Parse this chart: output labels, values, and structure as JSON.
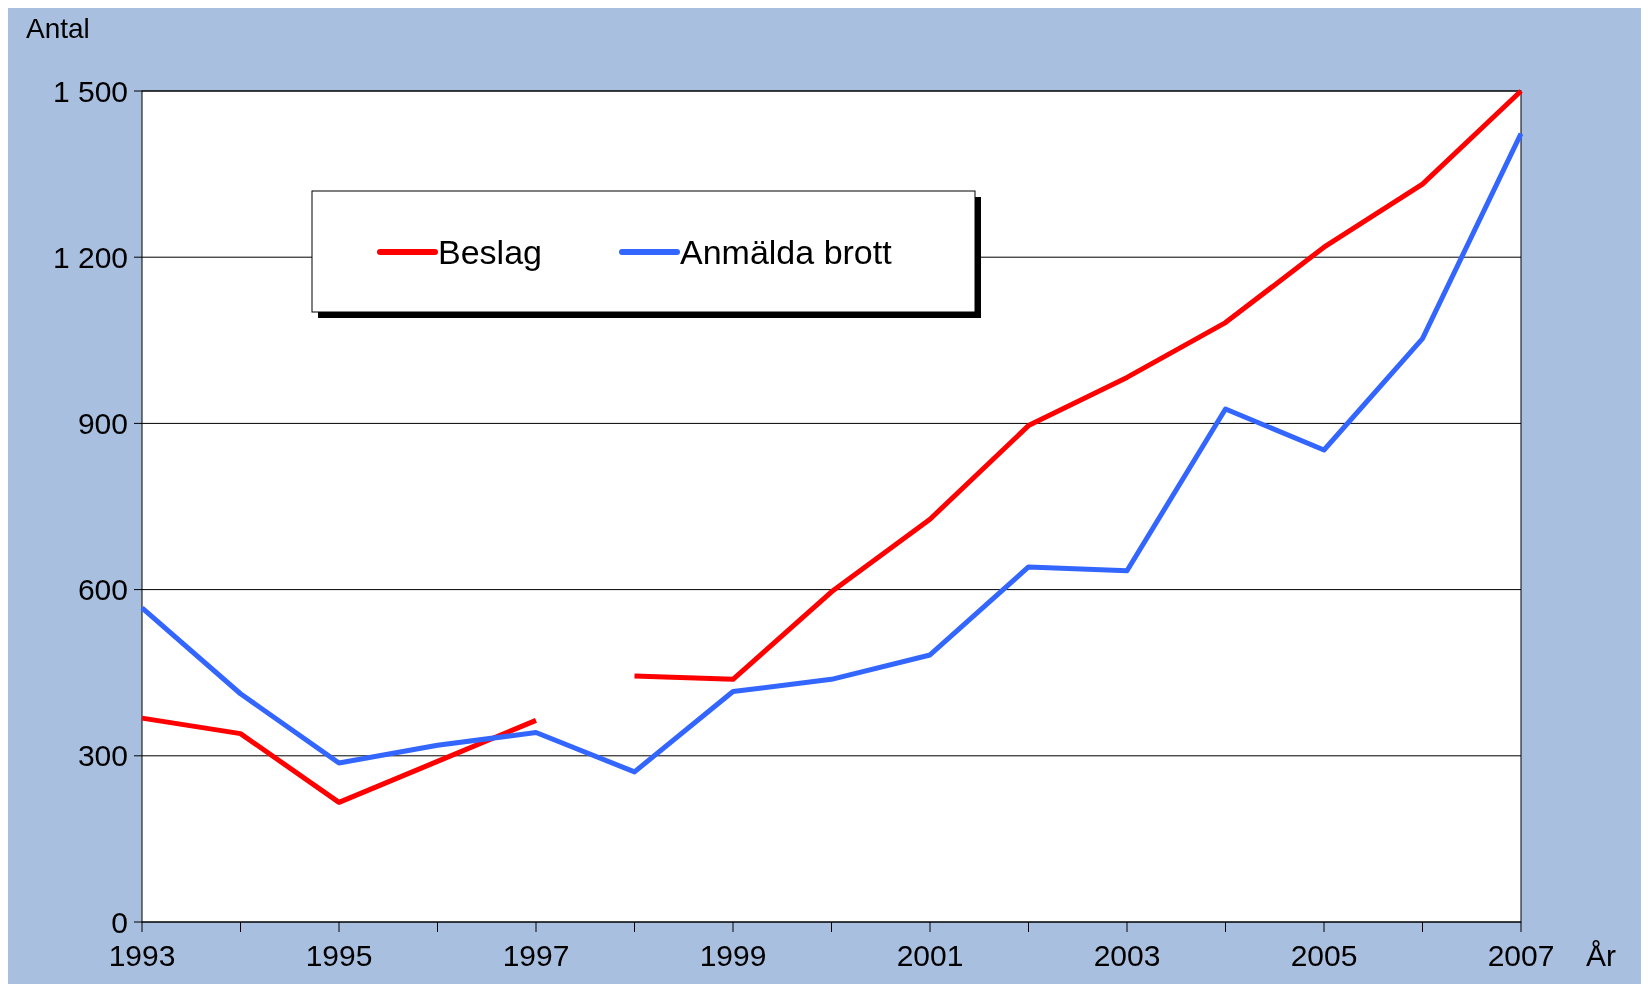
{
  "chart_data": {
    "type": "line",
    "ylabel": "Antal",
    "xlabel": "År",
    "x": [
      1993,
      1994,
      1995,
      1996,
      1997,
      1998,
      1999,
      2000,
      2001,
      2002,
      2003,
      2004,
      2005,
      2006,
      2007
    ],
    "series": [
      {
        "name": "Beslag",
        "color": "#ff0000",
        "x": [
          1993,
          1994,
          1995,
          1996,
          1997
        ],
        "values": [
          368,
          340,
          216,
          290,
          364
        ]
      },
      {
        "color": "#ff0000",
        "x": [
          1998,
          1999,
          2000,
          2001,
          2002,
          2003,
          2004,
          2005,
          2006,
          2007
        ],
        "values": [
          444,
          438,
          596,
          727,
          896,
          983,
          1082,
          1218,
          1332,
          1500
        ]
      },
      {
        "name": "Anmälda brott",
        "color": "#3366ff",
        "values": [
          567,
          412,
          287,
          319,
          342,
          271,
          416,
          438,
          482,
          641,
          634,
          926,
          852,
          1053,
          1423
        ]
      }
    ],
    "xlim": [
      1993,
      2007
    ],
    "xticks": [
      {
        "value": 1993,
        "label": "1993"
      },
      {
        "value": 1994,
        "label": null
      },
      {
        "value": 1995,
        "label": "1995"
      },
      {
        "value": 1996,
        "label": null
      },
      {
        "value": 1997,
        "label": "1997"
      },
      {
        "value": 1998,
        "label": null
      },
      {
        "value": 1999,
        "label": "1999"
      },
      {
        "value": 2000,
        "label": null
      },
      {
        "value": 2001,
        "label": "2001"
      },
      {
        "value": 2002,
        "label": null
      },
      {
        "value": 2003,
        "label": "2003"
      },
      {
        "value": 2004,
        "label": null
      },
      {
        "value": 2005,
        "label": "2005"
      },
      {
        "value": 2006,
        "label": null
      },
      {
        "value": 2007,
        "label": "2007"
      }
    ],
    "ylim": [
      0,
      1500
    ],
    "yticks": [
      0,
      300,
      600,
      900,
      {
        "value": 1200,
        "label": "1 200"
      },
      {
        "value": 1500,
        "label": "1 500"
      }
    ],
    "grid": "y",
    "legend": "top left",
    "marker": "none",
    "line_style": "solid"
  }
}
